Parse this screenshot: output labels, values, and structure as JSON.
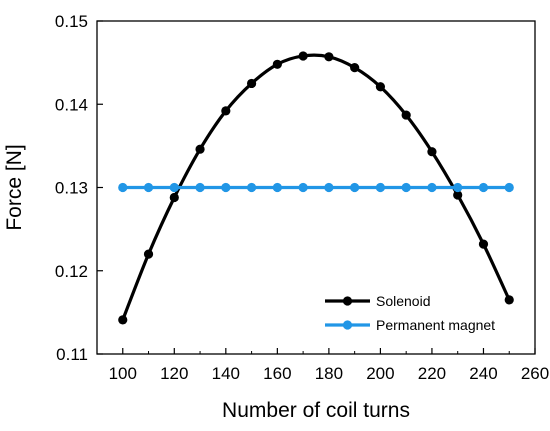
{
  "chart_data": {
    "type": "line",
    "xlabel": "Number of coil turns",
    "ylabel": "Force [N]",
    "xlim": [
      90,
      260
    ],
    "ylim": [
      0.11,
      0.15
    ],
    "xticks": [
      100,
      120,
      140,
      160,
      180,
      200,
      220,
      240,
      260
    ],
    "yticks": [
      0.11,
      0.12,
      0.13,
      0.14,
      0.15
    ],
    "ytick_labels": [
      "0.11",
      "0.12",
      "0.13",
      "0.14",
      "0.15"
    ],
    "grid": false,
    "legend_position": "bottom-right",
    "x": [
      100,
      110,
      120,
      130,
      140,
      150,
      160,
      170,
      180,
      190,
      200,
      210,
      220,
      230,
      240,
      250
    ],
    "series": [
      {
        "name": "Solenoid",
        "color": "#000000",
        "values": [
          0.1141,
          0.122,
          0.1288,
          0.1346,
          0.1392,
          0.1425,
          0.1448,
          0.1458,
          0.1457,
          0.1444,
          0.1421,
          0.1387,
          0.1343,
          0.1291,
          0.1232,
          0.1165
        ]
      },
      {
        "name": "Permanent magnet",
        "color": "#2196e6",
        "values": [
          0.13,
          0.13,
          0.13,
          0.13,
          0.13,
          0.13,
          0.13,
          0.13,
          0.13,
          0.13,
          0.13,
          0.13,
          0.13,
          0.13,
          0.13,
          0.13
        ]
      }
    ]
  }
}
